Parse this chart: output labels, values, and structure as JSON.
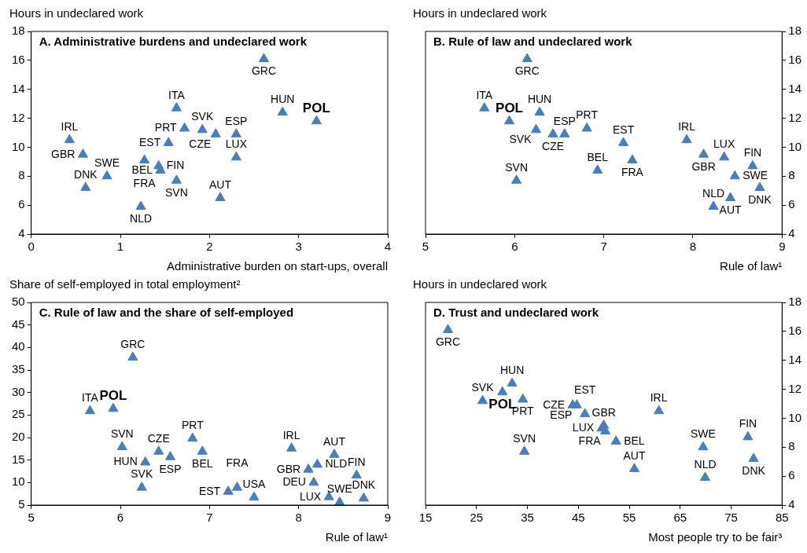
{
  "chart_data": [
    {
      "type": "scatter",
      "title": "A. Administrative burdens and undeclared work",
      "ylabel": "Hours in undeclared work",
      "xlabel": "Administrative burden on start-ups, overall",
      "xlim": [
        0,
        4
      ],
      "xticks": [
        0,
        1,
        2,
        3,
        4
      ],
      "ylim": [
        4,
        18
      ],
      "yticks": [
        4,
        6,
        8,
        10,
        12,
        14,
        16,
        18
      ],
      "marker": "triangle",
      "series": [
        {
          "color": "#4a7ebb",
          "x": [
            0.43,
            0.58,
            0.61,
            0.85,
            1.23,
            1.27,
            1.43,
            1.45,
            1.54,
            1.63,
            1.63,
            1.72,
            1.92,
            2.07,
            2.12,
            2.3,
            2.3,
            2.61,
            2.82
          ],
          "values": [
            10.5,
            9.5,
            7.2,
            8.0,
            5.9,
            9.1,
            8.7,
            8.4,
            10.3,
            7.7,
            12.7,
            11.3,
            11.2,
            10.9,
            6.5,
            10.9,
            9.3,
            16.1,
            12.4
          ]
        },
        {
          "name": "POL",
          "color": "#4a7ebb",
          "x": [
            3.2
          ],
          "values": [
            11.8
          ]
        }
      ],
      "annotations": [
        {
          "text": "IRL",
          "x": 0.43,
          "y": 10.5
        },
        {
          "text": "GBR",
          "x": 0.58,
          "y": 9.5
        },
        {
          "text": "DNK",
          "x": 0.61,
          "y": 7.2
        },
        {
          "text": "SWE",
          "x": 0.85,
          "y": 8.0
        },
        {
          "text": "NLD",
          "x": 1.23,
          "y": 5.9
        },
        {
          "text": "FRA",
          "x": 1.27,
          "y": 9.1
        },
        {
          "text": "FIN",
          "x": 1.43,
          "y": 8.7
        },
        {
          "text": "BEL",
          "x": 1.45,
          "y": 8.4
        },
        {
          "text": "EST",
          "x": 1.54,
          "y": 10.3
        },
        {
          "text": "SVN",
          "x": 1.63,
          "y": 7.7
        },
        {
          "text": "ITA",
          "x": 1.63,
          "y": 12.7
        },
        {
          "text": "PRT",
          "x": 1.72,
          "y": 11.3
        },
        {
          "text": "SVK",
          "x": 1.92,
          "y": 11.2
        },
        {
          "text": "CZE",
          "x": 2.07,
          "y": 10.9
        },
        {
          "text": "AUT",
          "x": 2.12,
          "y": 6.5
        },
        {
          "text": "ESP",
          "x": 2.3,
          "y": 10.9
        },
        {
          "text": "LUX",
          "x": 2.3,
          "y": 9.3
        },
        {
          "text": "GRC",
          "x": 2.61,
          "y": 16.1
        },
        {
          "text": "HUN",
          "x": 2.82,
          "y": 12.4
        }
      ]
    },
    {
      "type": "scatter",
      "title": "B. Rule of law and undeclared work",
      "ylabel": "Hours in undeclared work",
      "xlabel": "Rule of law¹",
      "xlim": [
        5,
        9
      ],
      "xticks": [
        5,
        6,
        7,
        8,
        9
      ],
      "ylim": [
        4,
        18
      ],
      "yticks": [
        4,
        6,
        8,
        10,
        12,
        14,
        16,
        18
      ],
      "marker": "triangle",
      "series": [
        {
          "color": "#4a7ebb",
          "x": [
            6.14,
            5.66,
            6.28,
            6.24,
            6.43,
            6.56,
            6.81,
            6.02,
            6.93,
            7.22,
            7.32,
            7.93,
            8.12,
            8.35,
            8.47,
            8.67,
            8.75,
            8.42,
            8.23
          ],
          "values": [
            16.1,
            12.7,
            12.4,
            11.2,
            10.9,
            10.9,
            11.3,
            7.7,
            8.4,
            10.3,
            9.1,
            10.5,
            9.5,
            9.3,
            8.0,
            8.7,
            7.2,
            6.5,
            5.9
          ]
        },
        {
          "name": "POL",
          "color": "#4a7ebb",
          "x": [
            5.94
          ],
          "values": [
            11.8
          ]
        }
      ],
      "annotations": [
        {
          "text": "GRC",
          "x": 6.14,
          "y": 16.1
        },
        {
          "text": "ITA",
          "x": 5.66,
          "y": 12.7
        },
        {
          "text": "HUN",
          "x": 6.28,
          "y": 12.4
        },
        {
          "text": "SVK",
          "x": 6.24,
          "y": 11.2
        },
        {
          "text": "CZE",
          "x": 6.43,
          "y": 10.9
        },
        {
          "text": "ESP",
          "x": 6.56,
          "y": 10.9
        },
        {
          "text": "PRT",
          "x": 6.81,
          "y": 11.3
        },
        {
          "text": "SVN",
          "x": 6.02,
          "y": 7.7
        },
        {
          "text": "BEL",
          "x": 6.93,
          "y": 8.4
        },
        {
          "text": "EST",
          "x": 7.22,
          "y": 10.3
        },
        {
          "text": "FRA",
          "x": 7.32,
          "y": 9.1
        },
        {
          "text": "IRL",
          "x": 7.93,
          "y": 10.5
        },
        {
          "text": "GBR",
          "x": 8.12,
          "y": 9.5
        },
        {
          "text": "LUX",
          "x": 8.35,
          "y": 9.3
        },
        {
          "text": "SWE",
          "x": 8.47,
          "y": 8.0
        },
        {
          "text": "FIN",
          "x": 8.67,
          "y": 8.7
        },
        {
          "text": "DNK",
          "x": 8.75,
          "y": 7.2
        },
        {
          "text": "AUT",
          "x": 8.42,
          "y": 6.5
        },
        {
          "text": "NLD",
          "x": 8.23,
          "y": 5.9
        }
      ]
    },
    {
      "type": "scatter",
      "title": "C. Rule of law and the share of self-employed",
      "ylabel": "Share of self-employed in total employment²",
      "xlabel": "Rule of law¹",
      "xlim": [
        5,
        9
      ],
      "xticks": [
        5,
        6,
        7,
        8,
        9
      ],
      "ylim": [
        5,
        50
      ],
      "yticks": [
        5,
        10,
        15,
        20,
        25,
        30,
        35,
        40,
        45,
        50
      ],
      "marker": "triangle",
      "series": [
        {
          "color": "#4a7ebb",
          "x": [
            6.14,
            5.66,
            6.02,
            6.28,
            6.24,
            6.43,
            6.56,
            6.81,
            6.92,
            7.21,
            7.31,
            7.5,
            7.92,
            8.11,
            8.17,
            8.21,
            8.4,
            8.65,
            8.34,
            8.46,
            8.73
          ],
          "values": [
            37.8,
            25.9,
            17.9,
            14.5,
            8.9,
            16.9,
            15.7,
            19.8,
            16.9,
            8.0,
            8.9,
            6.7,
            17.6,
            12.9,
            10.0,
            14.0,
            16.2,
            11.6,
            6.8,
            5.6,
            6.5
          ]
        },
        {
          "name": "POL",
          "color": "#4a7ebb",
          "x": [
            5.92
          ],
          "values": [
            26.4
          ]
        }
      ],
      "annotations": [
        {
          "text": "GRC",
          "x": 6.14,
          "y": 37.8
        },
        {
          "text": "ITA",
          "x": 5.66,
          "y": 25.9
        },
        {
          "text": "SVN",
          "x": 6.02,
          "y": 17.9
        },
        {
          "text": "HUN",
          "x": 6.28,
          "y": 14.5
        },
        {
          "text": "SVK",
          "x": 6.24,
          "y": 8.9
        },
        {
          "text": "CZE",
          "x": 6.43,
          "y": 16.9
        },
        {
          "text": "ESP",
          "x": 6.56,
          "y": 15.7
        },
        {
          "text": "PRT",
          "x": 6.81,
          "y": 19.8
        },
        {
          "text": "BEL",
          "x": 6.92,
          "y": 16.9
        },
        {
          "text": "EST",
          "x": 7.21,
          "y": 8.0
        },
        {
          "text": "FRA",
          "x": 7.31,
          "y": 8.9
        },
        {
          "text": "USA",
          "x": 7.5,
          "y": 6.7
        },
        {
          "text": "IRL",
          "x": 7.92,
          "y": 17.6
        },
        {
          "text": "GBR",
          "x": 8.11,
          "y": 12.9
        },
        {
          "text": "DEU",
          "x": 8.17,
          "y": 10.0
        },
        {
          "text": "NLD",
          "x": 8.21,
          "y": 14.0
        },
        {
          "text": "AUT",
          "x": 8.4,
          "y": 16.2
        },
        {
          "text": "FIN",
          "x": 8.65,
          "y": 11.6
        },
        {
          "text": "LUX",
          "x": 8.34,
          "y": 6.8
        },
        {
          "text": "SWE",
          "x": 8.46,
          "y": 5.6
        },
        {
          "text": "DNK",
          "x": 8.73,
          "y": 6.5
        }
      ]
    },
    {
      "type": "scatter",
      "title": "D. Trust and undeclared work",
      "ylabel": "Hours in undeclared work",
      "xlabel": "Most people try to be fair³",
      "xlim": [
        15,
        85
      ],
      "xticks": [
        15,
        25,
        35,
        45,
        55,
        65,
        75,
        85
      ],
      "ylim": [
        4,
        18
      ],
      "yticks": [
        4,
        6,
        8,
        10,
        12,
        14,
        16,
        18
      ],
      "marker": "triangle",
      "series": [
        {
          "color": "#4a7ebb",
          "x": [
            19.4,
            26.2,
            32.0,
            34.1,
            34.4,
            44.7,
            43.9,
            46.3,
            50.0,
            49.6,
            50.3,
            52.4,
            60.8,
            56.0,
            69.5,
            69.9,
            78.3,
            79.4
          ],
          "values": [
            16.1,
            11.2,
            12.4,
            11.3,
            7.7,
            10.9,
            10.9,
            10.3,
            9.5,
            9.3,
            9.1,
            8.4,
            10.5,
            6.5,
            8.0,
            5.9,
            8.7,
            7.2
          ]
        },
        {
          "name": "POL",
          "color": "#4a7ebb",
          "x": [
            30.1
          ],
          "values": [
            11.8
          ]
        }
      ],
      "annotations": [
        {
          "text": "GRC",
          "x": 19.4,
          "y": 16.1
        },
        {
          "text": "SVK",
          "x": 26.2,
          "y": 11.2
        },
        {
          "text": "HUN",
          "x": 32.0,
          "y": 12.4
        },
        {
          "text": "PRT",
          "x": 34.1,
          "y": 11.3
        },
        {
          "text": "SVN",
          "x": 34.4,
          "y": 7.7
        },
        {
          "text": "ESP",
          "x": 44.7,
          "y": 10.9
        },
        {
          "text": "CZE",
          "x": 43.9,
          "y": 10.9
        },
        {
          "text": "EST",
          "x": 46.3,
          "y": 10.3
        },
        {
          "text": "GBR",
          "x": 50.0,
          "y": 9.5
        },
        {
          "text": "LUX",
          "x": 49.6,
          "y": 9.3
        },
        {
          "text": "FRA",
          "x": 50.3,
          "y": 9.1
        },
        {
          "text": "BEL",
          "x": 52.4,
          "y": 8.4
        },
        {
          "text": "IRL",
          "x": 60.8,
          "y": 10.5
        },
        {
          "text": "AUT",
          "x": 56.0,
          "y": 6.5
        },
        {
          "text": "SWE",
          "x": 69.5,
          "y": 8.0
        },
        {
          "text": "NLD",
          "x": 69.9,
          "y": 5.9
        },
        {
          "text": "FIN",
          "x": 78.3,
          "y": 8.7
        },
        {
          "text": "DNK",
          "x": 79.4,
          "y": 7.2
        }
      ]
    }
  ]
}
